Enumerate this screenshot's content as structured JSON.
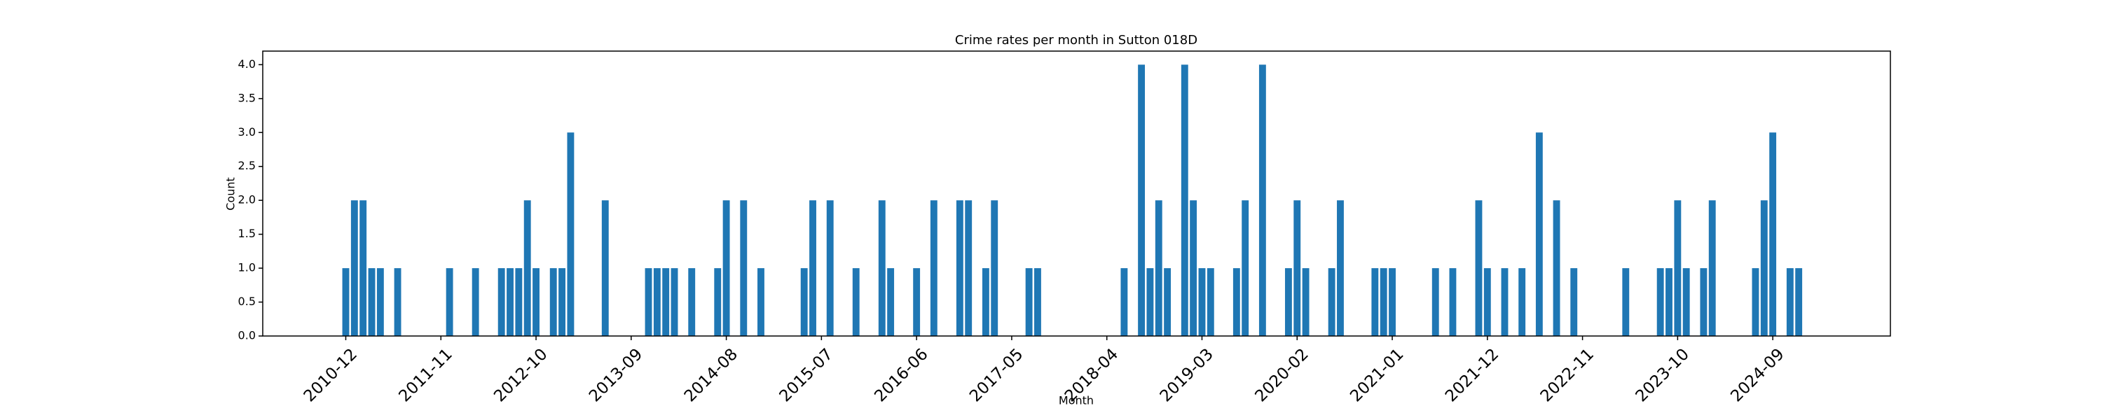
{
  "chart_data": {
    "type": "bar",
    "title": "Crime rates per month in Sutton 018D",
    "xlabel": "Month",
    "ylabel": "Count",
    "color": "#1f77b4",
    "categories": [
      "2010-12",
      null,
      null,
      null,
      null,
      null,
      null,
      null,
      null,
      null,
      null,
      "2011-11",
      null,
      null,
      null,
      null,
      null,
      null,
      null,
      null,
      null,
      null,
      "2012-10",
      null,
      null,
      null,
      null,
      null,
      null,
      null,
      null,
      null,
      null,
      "2013-09",
      null,
      null,
      null,
      null,
      null,
      null,
      null,
      null,
      null,
      null,
      "2014-08",
      null,
      null,
      null,
      null,
      null,
      null,
      null,
      null,
      null,
      null,
      "2015-07",
      null,
      null,
      null,
      null,
      null,
      null,
      null,
      null,
      null,
      null,
      "2016-06",
      null,
      null,
      null,
      null,
      null,
      null,
      null,
      null,
      null,
      null,
      "2017-05",
      null,
      null,
      null,
      null,
      null,
      null,
      null,
      null,
      null,
      null,
      "2018-04",
      null,
      null,
      null,
      null,
      null,
      null,
      null,
      null,
      null,
      null,
      "2019-03",
      null,
      null,
      null,
      null,
      null,
      null,
      null,
      null,
      null,
      null,
      "2020-02",
      null,
      null,
      null,
      null,
      null,
      null,
      null,
      null,
      null,
      null,
      "2021-01",
      null,
      null,
      null,
      null,
      null,
      null,
      null,
      null,
      null,
      null,
      "2021-12",
      null,
      null,
      null,
      null,
      null,
      null,
      null,
      null,
      null,
      null,
      "2022-11",
      null,
      null,
      null,
      null,
      null,
      null,
      null,
      null,
      null,
      null,
      "2023-10",
      null,
      null,
      null,
      null,
      null,
      null,
      null,
      null,
      null,
      null,
      "2024-09",
      null,
      null,
      null
    ],
    "values": [
      1,
      2,
      2,
      1,
      1,
      0,
      1,
      0,
      0,
      0,
      0,
      0,
      1,
      0,
      0,
      1,
      0,
      0,
      1,
      1,
      1,
      2,
      1,
      0,
      1,
      1,
      3,
      0,
      0,
      0,
      2,
      0,
      0,
      0,
      0,
      1,
      1,
      1,
      1,
      0,
      1,
      0,
      0,
      1,
      2,
      0,
      2,
      0,
      1,
      0,
      0,
      0,
      0,
      1,
      2,
      0,
      2,
      0,
      0,
      1,
      0,
      0,
      2,
      1,
      0,
      0,
      1,
      0,
      2,
      0,
      0,
      2,
      2,
      0,
      1,
      2,
      0,
      0,
      0,
      1,
      1,
      0,
      0,
      0,
      0,
      0,
      0,
      0,
      0,
      0,
      1,
      0,
      4,
      1,
      2,
      1,
      0,
      4,
      2,
      1,
      1,
      0,
      0,
      1,
      2,
      0,
      4,
      0,
      0,
      1,
      2,
      1,
      0,
      0,
      1,
      2,
      0,
      0,
      0,
      1,
      1,
      1,
      0,
      0,
      0,
      0,
      1,
      0,
      1,
      0,
      0,
      2,
      1,
      0,
      1,
      0,
      1,
      0,
      3,
      0,
      2,
      0,
      1,
      0,
      0,
      0,
      0,
      0,
      1,
      0,
      0,
      0,
      1,
      1,
      2,
      1,
      0,
      1,
      2,
      0,
      0,
      0,
      0,
      1,
      2,
      3,
      0,
      1,
      1
    ],
    "ylim": [
      0,
      4.2
    ],
    "yticks": [
      {
        "value": 0,
        "label": "0.0"
      },
      0.5,
      {
        "value": 1,
        "label": "1.0"
      },
      1.5,
      {
        "value": 2,
        "label": "2.0"
      },
      2.5,
      {
        "value": 3,
        "label": "3.0"
      },
      3.5,
      {
        "value": 4,
        "label": "4.0"
      }
    ]
  }
}
